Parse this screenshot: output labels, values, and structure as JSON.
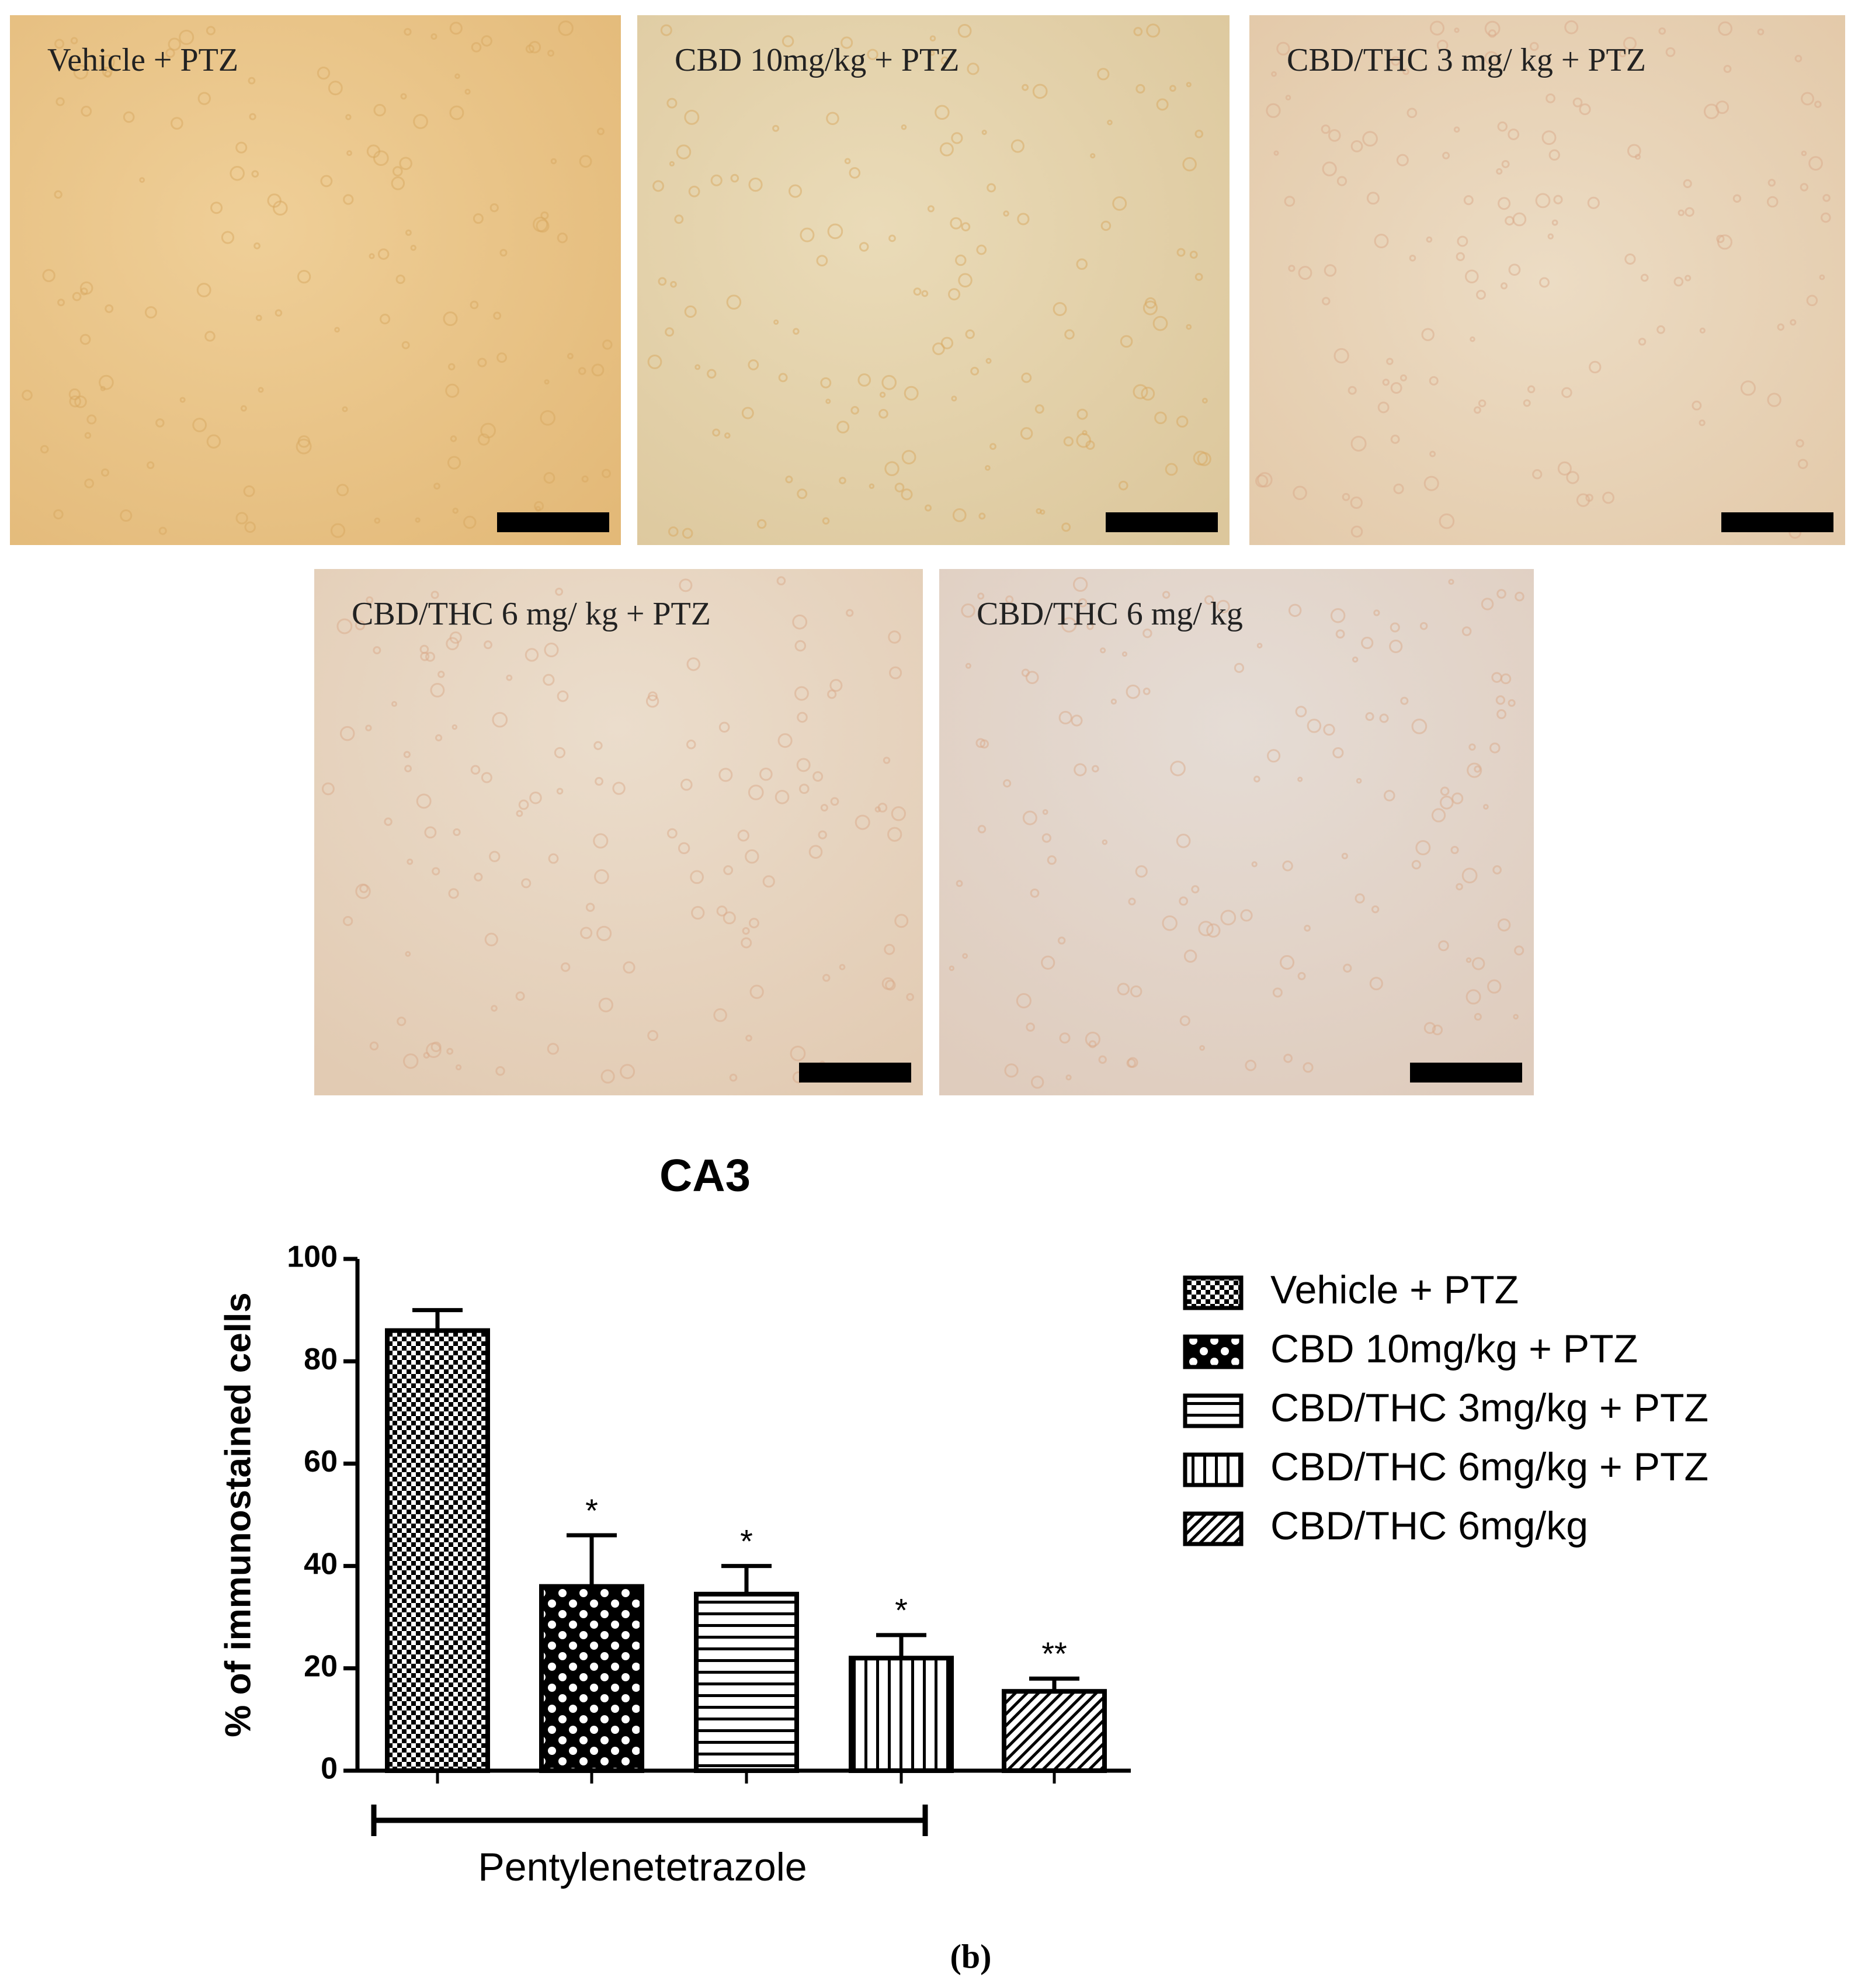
{
  "micrographs": [
    {
      "label": "Vehicle + PTZ"
    },
    {
      "label": "CBD 10mg/kg + PTZ"
    },
    {
      "label": "CBD/THC 3 mg/ kg + PTZ"
    },
    {
      "label": "CBD/THC 6 mg/ kg + PTZ"
    },
    {
      "label": "CBD/THC 6 mg/ kg"
    }
  ],
  "chart_data": {
    "type": "bar",
    "title": "CA3",
    "y_label": "% of immunostained cells",
    "ylim": [
      0,
      100
    ],
    "yticks": [
      0,
      20,
      40,
      60,
      80,
      100
    ],
    "bars": [
      {
        "name": "Vehicle + PTZ",
        "value": 86,
        "error": 4,
        "pattern": "fine-check"
      },
      {
        "name": "CBD 10mg/kg + PTZ",
        "value": 36,
        "error": 10,
        "annotation": "*",
        "pattern": "coarse-check"
      },
      {
        "name": "CBD/THC 3mg/kg + PTZ",
        "value": 34.5,
        "error": 5.5,
        "annotation": "*",
        "pattern": "horizontal"
      },
      {
        "name": "CBD/THC 6mg/kg + PTZ",
        "value": 22,
        "error": 4.5,
        "annotation": "*",
        "pattern": "vertical"
      },
      {
        "name": "CBD/THC 6mg/kg",
        "value": 15.5,
        "error": 2.5,
        "annotation": "**",
        "pattern": "diagonal"
      }
    ],
    "bracket_label": "Pentylenetetrazole"
  },
  "caption": "(b)"
}
